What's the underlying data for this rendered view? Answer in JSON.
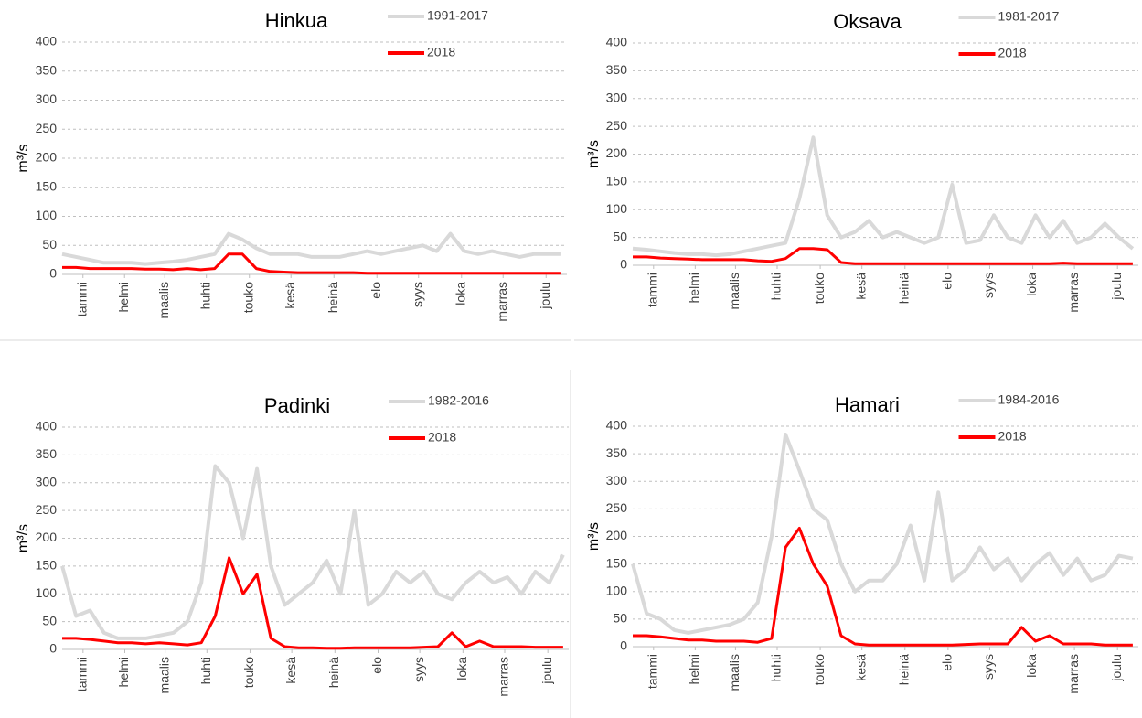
{
  "chart_data": [
    {
      "type": "line",
      "title": "Hinkua",
      "y_label": "m³/s",
      "x": [
        1,
        11,
        21,
        31,
        41,
        51,
        61,
        71,
        81,
        91,
        101,
        111,
        121,
        131,
        141,
        151,
        161,
        171,
        181,
        191,
        201,
        211,
        221,
        231,
        241,
        251,
        261,
        271,
        281,
        291,
        301,
        311,
        321,
        331,
        341,
        351,
        361
      ],
      "xlim": [
        1,
        365
      ],
      "xticks": [
        {
          "value": 16,
          "label": "tammi"
        },
        {
          "value": 46,
          "label": "helmi"
        },
        {
          "value": 75,
          "label": "maalis"
        },
        {
          "value": 105,
          "label": "huhti"
        },
        {
          "value": 136,
          "label": "touko"
        },
        {
          "value": 166,
          "label": "kesä"
        },
        {
          "value": 197,
          "label": "heinä"
        },
        {
          "value": 228,
          "label": "elo"
        },
        {
          "value": 258,
          "label": "syys"
        },
        {
          "value": 289,
          "label": "loka"
        },
        {
          "value": 319,
          "label": "marras"
        },
        {
          "value": 350,
          "label": "joulu"
        }
      ],
      "ylim": [
        0,
        400
      ],
      "yticks": [
        0,
        50,
        100,
        150,
        200,
        250,
        300,
        350,
        400
      ],
      "grid": true,
      "series": [
        {
          "name": "1991-2017",
          "color": "#d9d9d9",
          "values": [
            35,
            30,
            25,
            20,
            20,
            20,
            18,
            20,
            22,
            25,
            30,
            35,
            70,
            60,
            45,
            35,
            35,
            35,
            30,
            30,
            30,
            35,
            40,
            35,
            40,
            45,
            50,
            40,
            70,
            40,
            35,
            40,
            35,
            30,
            35,
            35,
            35
          ]
        },
        {
          "name": "2018",
          "color": "#ff0000",
          "values": [
            12,
            12,
            10,
            10,
            10,
            10,
            9,
            9,
            8,
            10,
            8,
            10,
            35,
            35,
            10,
            5,
            4,
            3,
            3,
            3,
            3,
            3,
            2,
            2,
            2,
            2,
            2,
            2,
            2,
            2,
            2,
            2,
            2,
            2,
            2,
            2,
            2
          ]
        }
      ]
    },
    {
      "type": "line",
      "title": "Oksava",
      "y_label": "m³/s",
      "x": [
        1,
        11,
        21,
        31,
        41,
        51,
        61,
        71,
        81,
        91,
        101,
        111,
        121,
        131,
        141,
        151,
        161,
        171,
        181,
        191,
        201,
        211,
        221,
        231,
        241,
        251,
        261,
        271,
        281,
        291,
        301,
        311,
        321,
        331,
        341,
        351,
        361
      ],
      "xlim": [
        1,
        365
      ],
      "xticks": [
        {
          "value": 16,
          "label": "tammi"
        },
        {
          "value": 46,
          "label": "helmi"
        },
        {
          "value": 75,
          "label": "maalis"
        },
        {
          "value": 105,
          "label": "huhti"
        },
        {
          "value": 136,
          "label": "touko"
        },
        {
          "value": 166,
          "label": "kesä"
        },
        {
          "value": 197,
          "label": "heinä"
        },
        {
          "value": 228,
          "label": "elo"
        },
        {
          "value": 258,
          "label": "syys"
        },
        {
          "value": 289,
          "label": "loka"
        },
        {
          "value": 319,
          "label": "marras"
        },
        {
          "value": 350,
          "label": "joulu"
        }
      ],
      "ylim": [
        0,
        400
      ],
      "yticks": [
        0,
        50,
        100,
        150,
        200,
        250,
        300,
        350,
        400
      ],
      "grid": true,
      "series": [
        {
          "name": "1981-2017",
          "color": "#d9d9d9",
          "values": [
            30,
            28,
            25,
            22,
            20,
            20,
            18,
            20,
            25,
            30,
            35,
            40,
            120,
            230,
            90,
            50,
            60,
            80,
            50,
            60,
            50,
            40,
            50,
            145,
            40,
            45,
            90,
            50,
            40,
            90,
            50,
            80,
            40,
            50,
            75,
            50,
            30
          ]
        },
        {
          "name": "2018",
          "color": "#ff0000",
          "values": [
            15,
            15,
            13,
            12,
            11,
            10,
            10,
            10,
            10,
            8,
            7,
            12,
            30,
            30,
            28,
            5,
            3,
            3,
            3,
            3,
            3,
            3,
            3,
            3,
            3,
            3,
            3,
            3,
            3,
            3,
            3,
            4,
            3,
            3,
            3,
            3,
            3
          ]
        }
      ]
    },
    {
      "type": "line",
      "title": "Padinki",
      "y_label": "m³/s",
      "x": [
        1,
        11,
        21,
        31,
        41,
        51,
        61,
        71,
        81,
        91,
        101,
        111,
        121,
        131,
        141,
        151,
        161,
        171,
        181,
        191,
        201,
        211,
        221,
        231,
        241,
        251,
        261,
        271,
        281,
        291,
        301,
        311,
        321,
        331,
        341,
        351,
        361
      ],
      "xlim": [
        1,
        365
      ],
      "xticks": [
        {
          "value": 16,
          "label": "tammi"
        },
        {
          "value": 46,
          "label": "helmi"
        },
        {
          "value": 75,
          "label": "maalis"
        },
        {
          "value": 105,
          "label": "huhti"
        },
        {
          "value": 136,
          "label": "touko"
        },
        {
          "value": 166,
          "label": "kesä"
        },
        {
          "value": 197,
          "label": "heinä"
        },
        {
          "value": 228,
          "label": "elo"
        },
        {
          "value": 258,
          "label": "syys"
        },
        {
          "value": 289,
          "label": "loka"
        },
        {
          "value": 319,
          "label": "marras"
        },
        {
          "value": 350,
          "label": "joulu"
        }
      ],
      "ylim": [
        0,
        400
      ],
      "yticks": [
        0,
        50,
        100,
        150,
        200,
        250,
        300,
        350,
        400
      ],
      "grid": true,
      "series": [
        {
          "name": "1982-2016",
          "color": "#d9d9d9",
          "values": [
            150,
            60,
            70,
            30,
            20,
            20,
            20,
            25,
            30,
            50,
            120,
            330,
            300,
            200,
            325,
            150,
            80,
            100,
            120,
            160,
            100,
            250,
            80,
            100,
            140,
            120,
            140,
            100,
            90,
            120,
            140,
            120,
            130,
            100,
            140,
            120,
            170
          ]
        },
        {
          "name": "2018",
          "color": "#ff0000",
          "values": [
            20,
            20,
            18,
            15,
            12,
            12,
            10,
            12,
            10,
            8,
            12,
            60,
            165,
            100,
            135,
            20,
            5,
            3,
            3,
            2,
            2,
            3,
            3,
            3,
            3,
            3,
            4,
            5,
            30,
            5,
            15,
            5,
            5,
            5,
            4,
            4,
            4
          ]
        }
      ]
    },
    {
      "type": "line",
      "title": "Hamari",
      "y_label": "m³/s",
      "x": [
        1,
        11,
        21,
        31,
        41,
        51,
        61,
        71,
        81,
        91,
        101,
        111,
        121,
        131,
        141,
        151,
        161,
        171,
        181,
        191,
        201,
        211,
        221,
        231,
        241,
        251,
        261,
        271,
        281,
        291,
        301,
        311,
        321,
        331,
        341,
        351,
        361
      ],
      "xlim": [
        1,
        365
      ],
      "xticks": [
        {
          "value": 16,
          "label": "tammi"
        },
        {
          "value": 46,
          "label": "helmi"
        },
        {
          "value": 75,
          "label": "maalis"
        },
        {
          "value": 105,
          "label": "huhti"
        },
        {
          "value": 136,
          "label": "touko"
        },
        {
          "value": 166,
          "label": "kesä"
        },
        {
          "value": 197,
          "label": "heinä"
        },
        {
          "value": 228,
          "label": "elo"
        },
        {
          "value": 258,
          "label": "syys"
        },
        {
          "value": 289,
          "label": "loka"
        },
        {
          "value": 319,
          "label": "marras"
        },
        {
          "value": 350,
          "label": "joulu"
        }
      ],
      "ylim": [
        0,
        400
      ],
      "yticks": [
        0,
        50,
        100,
        150,
        200,
        250,
        300,
        350,
        400
      ],
      "grid": true,
      "series": [
        {
          "name": "1984-2016",
          "color": "#d9d9d9",
          "values": [
            150,
            60,
            50,
            30,
            25,
            30,
            35,
            40,
            50,
            80,
            200,
            385,
            320,
            250,
            230,
            150,
            100,
            120,
            120,
            150,
            220,
            120,
            280,
            120,
            140,
            180,
            140,
            160,
            120,
            150,
            170,
            130,
            160,
            120,
            130,
            165,
            160
          ]
        },
        {
          "name": "2018",
          "color": "#ff0000",
          "values": [
            20,
            20,
            18,
            15,
            12,
            12,
            10,
            10,
            10,
            8,
            15,
            180,
            215,
            150,
            110,
            20,
            5,
            3,
            3,
            3,
            3,
            3,
            3,
            3,
            4,
            5,
            5,
            5,
            35,
            10,
            20,
            5,
            5,
            5,
            3,
            3,
            3
          ]
        }
      ]
    }
  ]
}
